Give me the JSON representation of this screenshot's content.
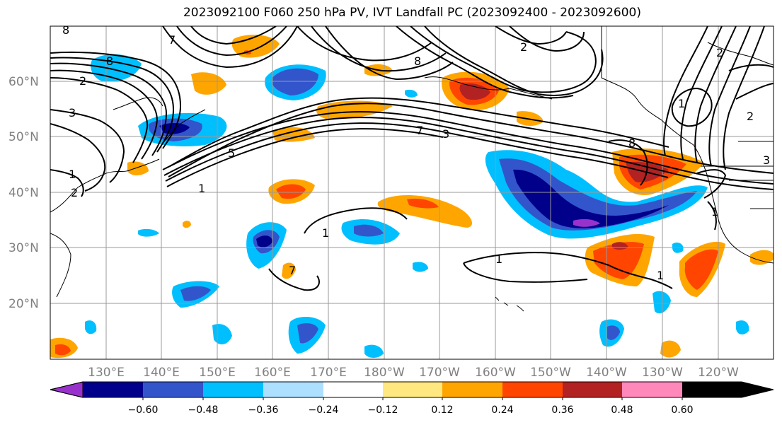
{
  "title": "2023092100 F060 250 hPa PV, IVT Landfall PC (2023092400 - 2023092600)",
  "lat_labels": [
    "60°N",
    "50°N",
    "40°N",
    "30°N",
    "20°N"
  ],
  "lon_labels": [
    "130°E",
    "140°E",
    "150°E",
    "160°E",
    "170°E",
    "180°W",
    "170°W",
    "160°W",
    "150°W",
    "140°W",
    "130°W",
    "120°W"
  ],
  "colorbar": {
    "tick_labels": [
      "−0.60",
      "−0.48",
      "−0.36",
      "−0.24",
      "−0.12",
      "0.12",
      "0.24",
      "0.36",
      "0.48",
      "0.60"
    ],
    "colors": [
      "#9932CC",
      "#00008B",
      "#3355CC",
      "#00BFFF",
      "#ADDFFF",
      "#FFFFFF",
      "#FFE880",
      "#FFA500",
      "#FF4500",
      "#B22222",
      "#FF88BB"
    ]
  },
  "contour_labels": [
    "8",
    "7",
    "2",
    "3",
    "1",
    "2",
    "8",
    "5",
    "1",
    "1",
    "1",
    "7",
    "8",
    "2",
    "3",
    "7",
    "1",
    "2",
    "8",
    "2",
    "3",
    "1",
    "1"
  ],
  "colors": {
    "grid": "#999999",
    "coast": "#000000",
    "contour": "#000000"
  }
}
